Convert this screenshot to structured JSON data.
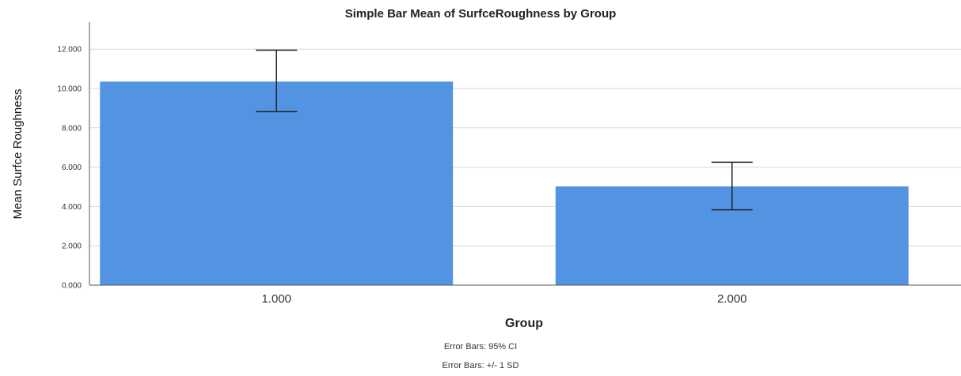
{
  "chart_data": {
    "type": "bar",
    "title": "Simple Bar Mean of SurfceRoughness by Group",
    "xlabel": "Group",
    "ylabel": "Mean Surfce Roughness",
    "categories": [
      "1.000",
      "2.000"
    ],
    "values": [
      10.35,
      5.02
    ],
    "error_low": [
      8.82,
      3.83
    ],
    "error_high": [
      11.95,
      6.25
    ],
    "ylim": [
      0,
      13
    ],
    "yticks": [
      0,
      2,
      4,
      6,
      8,
      10,
      12
    ],
    "ytick_labels": [
      "0.000",
      "2.000",
      "4.000",
      "6.000",
      "8.000",
      "10.000",
      "12.000"
    ],
    "grid": true,
    "bar_color": "#5294e2",
    "footnotes": [
      "Error Bars: 95% CI",
      "Error Bars: +/- 1 SD"
    ]
  }
}
